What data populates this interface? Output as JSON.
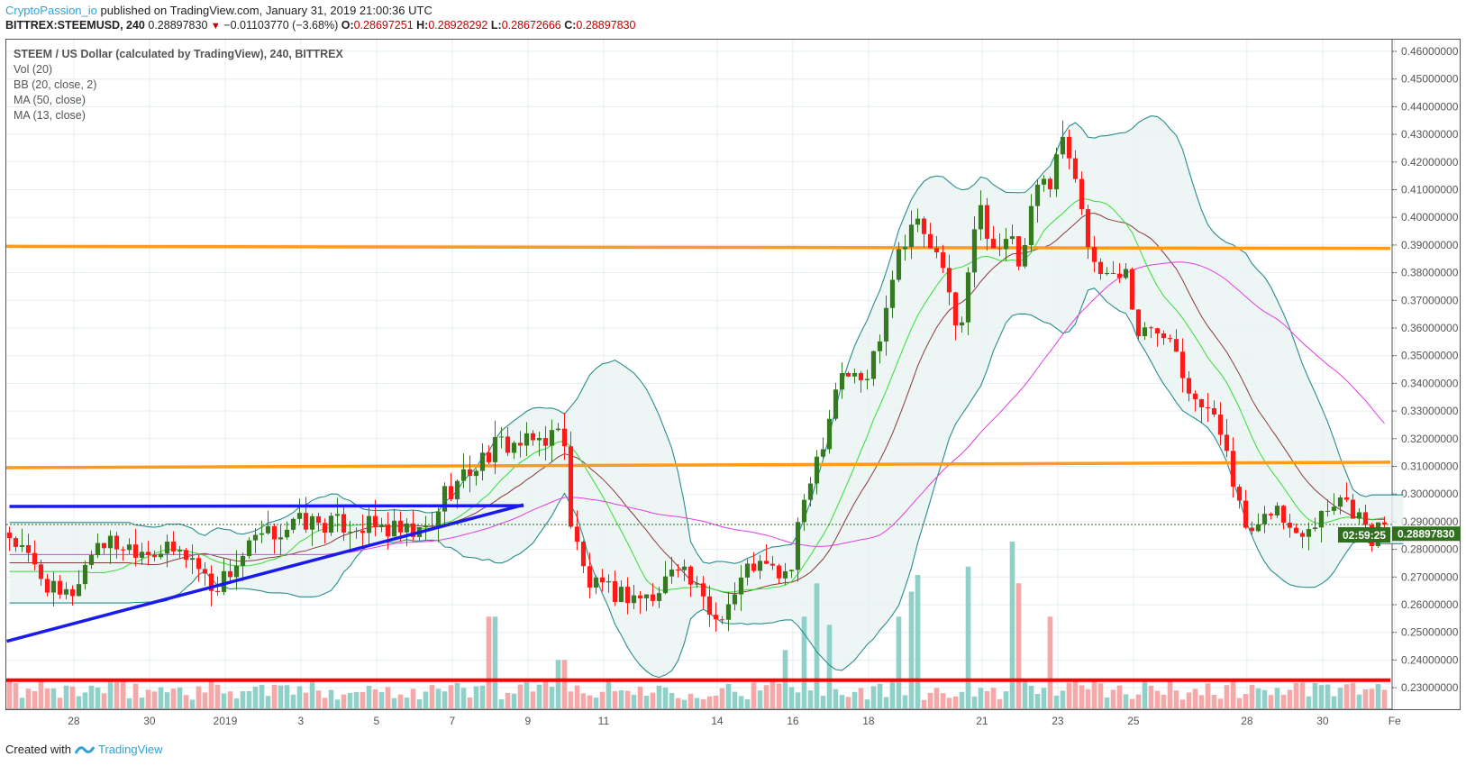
{
  "header": {
    "author": "CryptoPassion_io",
    "published": "published on TradingView.com, January 31, 2019 21:00:36 UTC",
    "symbol": "BITTREX:STEEMUSD, 240",
    "last": "0.28897830",
    "change": "−0.01103770 (−3.68%)",
    "o_label": "O:",
    "o": "0.28697251",
    "h_label": "H:",
    "h": "0.28928292",
    "l_label": "L:",
    "l": "0.28672666",
    "c_label": "C:",
    "c": "0.28897830"
  },
  "legend": [
    "STEEM / US Dollar (calculated by TradingView), 240, BITTREX",
    "Vol (20)",
    "BB (20, close, 2)",
    "MA (50, close)",
    "MA (13, close)"
  ],
  "footer": {
    "created": "Created with",
    "brand": "TradingView"
  },
  "colors": {
    "up": "#357a21",
    "down": "#ff1a1a",
    "vol_up": "#8fd0c9",
    "vol_down": "#f5a8a8",
    "bb": "#2b8c8c",
    "bb_fill": "#e9f4f3",
    "ma13": "#33dd33",
    "basis": "#8b3a3a",
    "ma50": "#e23ce2",
    "orange": "#ff9a1a",
    "red_line": "#ff0000",
    "blue": "#1a1aee",
    "price_tag": "#2f6f1e"
  },
  "chart_data": {
    "type": "candlestick",
    "bars_per_day": 6,
    "ylim": [
      0.225,
      0.465
    ],
    "y_ticks": [
      "0.46000000",
      "0.45000000",
      "0.44000000",
      "0.43000000",
      "0.42000000",
      "0.41000000",
      "0.40000000",
      "0.39000000",
      "0.38000000",
      "0.37000000",
      "0.36000000",
      "0.35000000",
      "0.34000000",
      "0.33000000",
      "0.32000000",
      "0.31000000",
      "0.30000000",
      "0.29000000",
      "0.28000000",
      "0.27000000",
      "0.26000000",
      "0.25000000",
      "0.24000000",
      "0.23000000"
    ],
    "x_ticks": [
      {
        "label": "28",
        "bar": 10.2
      },
      {
        "label": "30",
        "bar": 22.2
      },
      {
        "label": "2019",
        "bar": 34.2
      },
      {
        "label": "3",
        "bar": 46.2
      },
      {
        "label": "5",
        "bar": 58.2
      },
      {
        "label": "7",
        "bar": 70.2
      },
      {
        "label": "9",
        "bar": 82.2
      },
      {
        "label": "11",
        "bar": 94.2
      },
      {
        "label": "14",
        "bar": 112.2
      },
      {
        "label": "16",
        "bar": 124.2
      },
      {
        "label": "18",
        "bar": 136.2
      },
      {
        "label": "21",
        "bar": 154.2
      },
      {
        "label": "23",
        "bar": 166.2
      },
      {
        "label": "25",
        "bar": 178.2
      },
      {
        "label": "28",
        "bar": 196.2
      },
      {
        "label": "30",
        "bar": 208.2
      },
      {
        "label": "Fe",
        "bar": 219.6
      }
    ],
    "close_path": [
      [
        0,
        0.285
      ],
      [
        7.9,
        0.262
      ],
      [
        10.2,
        0.265
      ],
      [
        13.8,
        0.283
      ],
      [
        22.4,
        0.28
      ],
      [
        28.6,
        0.278
      ],
      [
        32.3,
        0.266
      ],
      [
        34.2,
        0.27
      ],
      [
        39,
        0.283
      ],
      [
        46.2,
        0.29
      ],
      [
        58.2,
        0.288
      ],
      [
        64.1,
        0.285
      ],
      [
        67.1,
        0.288
      ],
      [
        68.6,
        0.3
      ],
      [
        70,
        0.302
      ],
      [
        77.5,
        0.318
      ],
      [
        82,
        0.318
      ],
      [
        87.9,
        0.323
      ],
      [
        88.9,
        0.29
      ],
      [
        91.6,
        0.268
      ],
      [
        93.9,
        0.265
      ],
      [
        102.7,
        0.262
      ],
      [
        105.6,
        0.278
      ],
      [
        109.3,
        0.263
      ],
      [
        111.9,
        0.255
      ],
      [
        114.5,
        0.262
      ],
      [
        117.5,
        0.275
      ],
      [
        123.7,
        0.27
      ],
      [
        126.4,
        0.303
      ],
      [
        129.3,
        0.322
      ],
      [
        131.6,
        0.345
      ],
      [
        135.7,
        0.34
      ],
      [
        138.2,
        0.36
      ],
      [
        140.4,
        0.385
      ],
      [
        143.4,
        0.4
      ],
      [
        147.1,
        0.385
      ],
      [
        149.3,
        0.37
      ],
      [
        150.8,
        0.357
      ],
      [
        153.5,
        0.405
      ],
      [
        156,
        0.39
      ],
      [
        159,
        0.39
      ],
      [
        160.4,
        0.38
      ],
      [
        162.7,
        0.41
      ],
      [
        165.5,
        0.415
      ],
      [
        166.4,
        0.43
      ],
      [
        168.6,
        0.42
      ],
      [
        170.1,
        0.405
      ],
      [
        171.6,
        0.38
      ],
      [
        177.5,
        0.38
      ],
      [
        178.5,
        0.358
      ],
      [
        184.1,
        0.36
      ],
      [
        186.4,
        0.342
      ],
      [
        190.1,
        0.33
      ],
      [
        193,
        0.318
      ],
      [
        195.4,
        0.29
      ],
      [
        197.5,
        0.283
      ],
      [
        200.4,
        0.297
      ],
      [
        203.4,
        0.285
      ],
      [
        207.3,
        0.292
      ],
      [
        210.8,
        0.3
      ],
      [
        213.8,
        0.293
      ],
      [
        215.6,
        0.283
      ],
      [
        218,
        0.289
      ]
    ],
    "volume_spikes": [
      [
        76.5,
        0.55
      ],
      [
        87.5,
        0.29
      ],
      [
        123,
        0.35
      ],
      [
        126,
        0.55
      ],
      [
        128,
        0.75
      ],
      [
        130,
        0.5
      ],
      [
        141,
        0.55
      ],
      [
        143,
        0.7
      ],
      [
        144,
        0.8
      ],
      [
        152,
        0.85
      ],
      [
        159,
        1.0
      ],
      [
        160,
        0.75
      ],
      [
        165,
        0.55
      ]
    ],
    "drawings": {
      "orange_upper": [
        0.3895,
        0.3888
      ],
      "orange_lower": [
        0.3095,
        0.3115
      ],
      "red_support": 0.2327,
      "blue_top": {
        "from": [
          0,
          0.2955
        ],
        "to": [
          81.5,
          0.2958
        ]
      },
      "blue_rising": {
        "from": [
          0,
          0.2468
        ],
        "to": [
          81.5,
          0.2961
        ]
      }
    },
    "last_price": "0.28897830",
    "countdown": "02:59:25"
  }
}
